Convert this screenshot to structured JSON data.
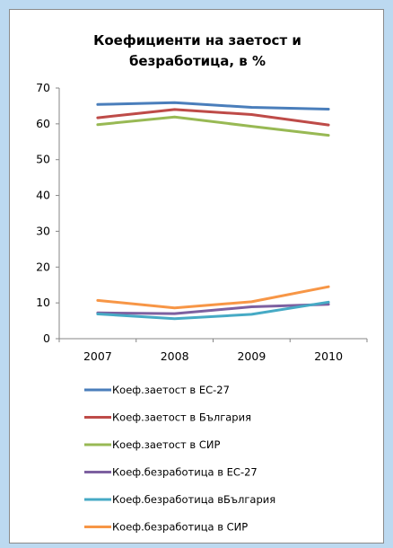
{
  "chart_data": {
    "type": "line",
    "title_lines": [
      "Коефициенти на заетост и",
      "безработица, в %"
    ],
    "xlabel": "",
    "ylabel": "",
    "categories": [
      "2007",
      "2008",
      "2009",
      "2010"
    ],
    "ylim": [
      0,
      70
    ],
    "yticks": [
      0,
      10,
      20,
      30,
      40,
      50,
      60,
      70
    ],
    "grid": false,
    "legend_position": "bottom",
    "series": [
      {
        "name": "Коеф.заетост в ЕС-27",
        "color": "#4a7ebb",
        "values": [
          65.4,
          65.9,
          64.6,
          64.1
        ]
      },
      {
        "name": "Коеф.заетост в България",
        "color": "#be4b48",
        "values": [
          61.7,
          64.0,
          62.6,
          59.7
        ]
      },
      {
        "name": "Коеф.заетост в СИР",
        "color": "#98b954",
        "values": [
          59.8,
          61.9,
          59.3,
          56.8
        ]
      },
      {
        "name": "Коеф.безработица в ЕС-27",
        "color": "#7d60a0",
        "values": [
          7.2,
          7.0,
          8.9,
          9.6
        ]
      },
      {
        "name": "Коеф.безработица вБългария",
        "color": "#46aac5",
        "values": [
          6.9,
          5.6,
          6.8,
          10.2
        ]
      },
      {
        "name": "Коеф.безработица в СИР",
        "color": "#f79646",
        "values": [
          10.7,
          8.6,
          10.3,
          14.5
        ]
      }
    ]
  }
}
